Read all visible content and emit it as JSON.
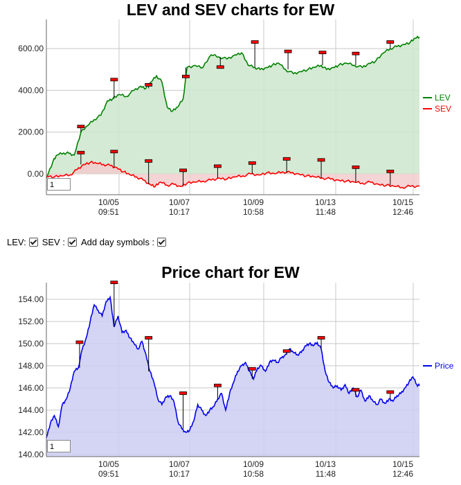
{
  "chart_data": [
    {
      "type": "line",
      "title": "LEV and SEV charts for EW",
      "x_ticks": [
        {
          "date": "10/05",
          "time": "09:51"
        },
        {
          "date": "10/07",
          "time": "10:17"
        },
        {
          "date": "10/09",
          "time": "10:58"
        },
        {
          "date": "10/13",
          "time": "11:48"
        },
        {
          "date": "10/15",
          "time": "12:46"
        }
      ],
      "y_ticks": [
        "0.00",
        "200.00",
        "400.00",
        "600.00"
      ],
      "ylim": [
        -100,
        740
      ],
      "grid": true,
      "legend_position": "right",
      "zoom_value": "1",
      "series": [
        {
          "name": "LEV",
          "color": "#008000",
          "fill": "#cce6cc",
          "t": [
            0,
            0.25,
            0.4,
            0.65,
            0.85,
            1.05,
            1.3,
            1.55,
            1.8,
            2.05,
            2.3,
            2.5,
            2.75,
            3.0,
            3.3,
            3.55,
            3.75,
            3.95,
            4.15,
            4.35,
            4.55,
            4.75,
            4.95,
            5.15,
            5.3,
            5.6,
            5.9,
            6.2,
            6.5,
            6.8,
            7.1,
            7.35,
            7.6,
            7.85,
            8.05,
            8.3,
            8.5,
            8.75,
            9.0,
            9.3,
            9.55,
            9.85,
            10.1,
            10.35,
            10.55,
            10.8,
            11.0,
            11.3,
            11.6,
            11.9,
            12.15,
            12.4,
            12.7,
            12.95,
            13.2,
            13.45,
            13.7,
            13.9,
            14.05
          ],
          "values": [
            -20,
            60,
            90,
            100,
            98,
            90,
            200,
            230,
            260,
            280,
            350,
            360,
            380,
            370,
            400,
            420,
            410,
            440,
            470,
            440,
            320,
            300,
            320,
            360,
            510,
            520,
            510,
            570,
            560,
            550,
            570,
            580,
            520,
            510,
            500,
            510,
            520,
            530,
            500,
            480,
            490,
            500,
            510,
            520,
            500,
            510,
            520,
            530,
            520,
            510,
            530,
            540,
            580,
            600,
            610,
            620,
            630,
            650,
            655
          ]
        },
        {
          "name": "SEV",
          "color": "#ff0000",
          "fill": "#f2cccc",
          "t": [
            0,
            0.3,
            0.6,
            0.9,
            1.15,
            1.4,
            1.65,
            1.9,
            2.15,
            2.4,
            2.65,
            2.9,
            3.15,
            3.4,
            3.65,
            3.9,
            4.1,
            4.3,
            4.55,
            4.8,
            5.05,
            5.3,
            5.6,
            5.9,
            6.2,
            6.5,
            6.8,
            7.1,
            7.4,
            7.7,
            8.0,
            8.3,
            8.6,
            8.9,
            9.2,
            9.5,
            9.8,
            10.1,
            10.4,
            10.7,
            11.0,
            11.3,
            11.6,
            11.9,
            12.2,
            12.5,
            12.8,
            13.1,
            13.4,
            13.7,
            14.05
          ],
          "values": [
            -10,
            -15,
            -10,
            -5,
            20,
            45,
            55,
            50,
            45,
            40,
            30,
            10,
            -5,
            -15,
            -30,
            -50,
            -60,
            -40,
            -55,
            -50,
            -60,
            -45,
            -40,
            -35,
            -30,
            -20,
            -25,
            -15,
            -10,
            0,
            -5,
            5,
            0,
            10,
            5,
            0,
            -10,
            -15,
            -20,
            -25,
            -30,
            -35,
            -40,
            -45,
            -40,
            -50,
            -55,
            -60,
            -65,
            -60,
            -58
          ]
        }
      ],
      "day_markers": [
        {
          "series": "LEV",
          "t": 1.3,
          "value": 220
        },
        {
          "series": "LEV",
          "t": 2.55,
          "value": 445
        },
        {
          "series": "LEV",
          "t": 3.85,
          "value": 420
        },
        {
          "series": "LEV",
          "t": 5.25,
          "value": 460
        },
        {
          "series": "LEV",
          "t": 6.55,
          "value": 505
        },
        {
          "series": "LEV",
          "t": 7.85,
          "value": 625
        },
        {
          "series": "LEV",
          "t": 9.1,
          "value": 580
        },
        {
          "series": "LEV",
          "t": 10.4,
          "value": 575
        },
        {
          "series": "LEV",
          "t": 11.65,
          "value": 570
        },
        {
          "series": "LEV",
          "t": 12.95,
          "value": 625
        },
        {
          "series": "SEV",
          "t": 1.3,
          "value": 95
        },
        {
          "series": "SEV",
          "t": 2.55,
          "value": 100
        },
        {
          "series": "SEV",
          "t": 3.85,
          "value": 55
        },
        {
          "series": "SEV",
          "t": 5.15,
          "value": 10
        },
        {
          "series": "SEV",
          "t": 6.45,
          "value": 30
        },
        {
          "series": "SEV",
          "t": 7.75,
          "value": 45
        },
        {
          "series": "SEV",
          "t": 9.05,
          "value": 65
        },
        {
          "series": "SEV",
          "t": 10.35,
          "value": 60
        },
        {
          "series": "SEV",
          "t": 11.65,
          "value": 25
        },
        {
          "series": "SEV",
          "t": 12.95,
          "value": 5
        }
      ]
    },
    {
      "type": "line",
      "title": "Price chart for EW",
      "x_ticks": [
        {
          "date": "10/05",
          "time": "09:51"
        },
        {
          "date": "10/07",
          "time": "10:17"
        },
        {
          "date": "10/09",
          "time": "10:58"
        },
        {
          "date": "10/13",
          "time": "11:48"
        },
        {
          "date": "10/15",
          "time": "12:46"
        }
      ],
      "y_ticks": [
        "140.00",
        "142.00",
        "144.00",
        "146.00",
        "148.00",
        "150.00",
        "152.00",
        "154.00"
      ],
      "ylim": [
        139.8,
        155.5
      ],
      "grid": true,
      "legend_position": "right",
      "zoom_value": "1",
      "series": [
        {
          "name": "Price",
          "color": "#0000ee",
          "fill": "#ccccf2",
          "t": [
            0,
            0.15,
            0.3,
            0.45,
            0.6,
            0.75,
            0.9,
            1.05,
            1.2,
            1.35,
            1.5,
            1.65,
            1.8,
            1.95,
            2.1,
            2.25,
            2.4,
            2.55,
            2.7,
            2.85,
            3.0,
            3.15,
            3.3,
            3.45,
            3.6,
            3.75,
            3.9,
            4.05,
            4.2,
            4.35,
            4.5,
            4.65,
            4.8,
            4.95,
            5.1,
            5.25,
            5.4,
            5.55,
            5.7,
            5.85,
            6.0,
            6.15,
            6.3,
            6.45,
            6.6,
            6.75,
            6.9,
            7.05,
            7.2,
            7.35,
            7.5,
            7.65,
            7.8,
            7.95,
            8.1,
            8.25,
            8.4,
            8.55,
            8.7,
            8.85,
            9.0,
            9.15,
            9.3,
            9.45,
            9.6,
            9.75,
            9.9,
            10.05,
            10.2,
            10.35,
            10.5,
            10.65,
            10.8,
            10.95,
            11.1,
            11.25,
            11.4,
            11.55,
            11.7,
            11.85,
            12.0,
            12.15,
            12.3,
            12.45,
            12.6,
            12.75,
            12.9,
            13.05,
            13.2,
            13.35,
            13.5,
            13.65,
            13.8,
            13.95,
            14.05
          ],
          "values": [
            141.5,
            142.8,
            143.5,
            142.5,
            144.5,
            145.0,
            146.0,
            147.5,
            147.8,
            149.5,
            150.5,
            152.0,
            153.5,
            153.0,
            152.5,
            153.8,
            154.2,
            151.5,
            152.5,
            151.0,
            151.2,
            150.5,
            150.0,
            149.5,
            150.2,
            149.0,
            147.5,
            146.5,
            145.0,
            144.5,
            145.2,
            145.3,
            144.8,
            143.0,
            142.3,
            142.0,
            142.2,
            143.0,
            144.5,
            144.0,
            143.5,
            144.0,
            144.3,
            145.0,
            145.5,
            144.0,
            145.5,
            146.5,
            147.5,
            148.0,
            148.3,
            147.5,
            146.8,
            147.8,
            148.0,
            147.5,
            148.3,
            148.5,
            148.3,
            148.7,
            149.0,
            149.5,
            149.2,
            149.0,
            149.2,
            149.8,
            150.0,
            149.8,
            150.1,
            149.5,
            147.5,
            146.5,
            146.0,
            146.2,
            145.8,
            146.3,
            145.5,
            146.0,
            145.2,
            145.8,
            144.8,
            145.3,
            144.8,
            144.5,
            145.0,
            144.6,
            145.0,
            144.8,
            145.3,
            145.5,
            146.0,
            146.5,
            147.0,
            146.3,
            146.2
          ]
        }
      ],
      "day_markers": [
        {
          "series": "Price",
          "t": 1.25,
          "value": 150.0
        },
        {
          "series": "Price",
          "t": 2.55,
          "value": 155.4
        },
        {
          "series": "Price",
          "t": 3.85,
          "value": 150.4
        },
        {
          "series": "Price",
          "t": 5.15,
          "value": 145.4
        },
        {
          "series": "Price",
          "t": 6.45,
          "value": 146.1
        },
        {
          "series": "Price",
          "t": 7.75,
          "value": 147.6
        },
        {
          "series": "Price",
          "t": 9.05,
          "value": 149.2
        },
        {
          "series": "Price",
          "t": 10.35,
          "value": 150.4
        },
        {
          "series": "Price",
          "t": 11.65,
          "value": 145.7
        },
        {
          "series": "Price",
          "t": 12.95,
          "value": 145.5
        }
      ]
    }
  ],
  "controls": {
    "lev_label": "LEV:",
    "sev_label": "SEV :",
    "day_symbols_label": "Add day symbols :"
  }
}
